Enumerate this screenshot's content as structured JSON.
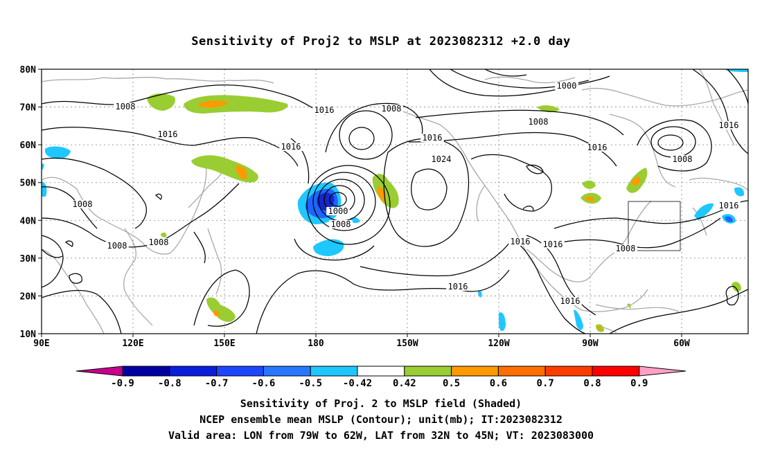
{
  "title": "Sensitivity of Proj2 to MSLP at 2023082312 +2.0 day",
  "map": {
    "lat_labels": [
      "80N",
      "70N",
      "60N",
      "50N",
      "40N",
      "30N",
      "20N",
      "10N"
    ],
    "lon_labels": [
      "90E",
      "120E",
      "150E",
      "180",
      "150W",
      "120W",
      "90W",
      "60W"
    ],
    "contour_labels": [
      {
        "text": "1008"
      },
      {
        "text": "1016"
      },
      {
        "text": "1008"
      },
      {
        "text": "1016"
      },
      {
        "text": "1016"
      },
      {
        "text": "1008"
      },
      {
        "text": "1008"
      },
      {
        "text": "1008"
      },
      {
        "text": "1000"
      },
      {
        "text": "1008"
      },
      {
        "text": "1016"
      },
      {
        "text": "1024"
      },
      {
        "text": "1000"
      },
      {
        "text": "1008"
      },
      {
        "text": "1016"
      },
      {
        "text": "1008"
      },
      {
        "text": "1016"
      },
      {
        "text": "1016"
      },
      {
        "text": "1016"
      },
      {
        "text": "1016"
      },
      {
        "text": "1008"
      },
      {
        "text": "1016"
      },
      {
        "text": "1016"
      }
    ],
    "colors": {
      "contour": "#000000",
      "coastline": "#a0a0a0",
      "grid": "#808080",
      "shade_green": "#9acd32",
      "shade_orange": "#ff9900",
      "shade_lightblue": "#1ec8ff",
      "shade_blue": "#1e64ff",
      "shade_darkblue": "#1428c8"
    }
  },
  "colorbar": {
    "tick_labels": [
      "-0.9",
      "-0.8",
      "-0.7",
      "-0.6",
      "-0.5",
      "-0.42",
      "0.42",
      "0.5",
      "0.6",
      "0.7",
      "0.8",
      "0.9"
    ],
    "colors": [
      "#c8008c",
      "#0000a0",
      "#0a1edc",
      "#1e46ff",
      "#2878ff",
      "#1ec8ff",
      "#ffffff",
      "#9acd32",
      "#ff9900",
      "#ff6e00",
      "#ff3c00",
      "#ff0000",
      "#ffa0c8"
    ]
  },
  "footer": {
    "line1": "Sensitivity of Proj. 2 to MSLP field (Shaded)",
    "line2": "NCEP ensemble mean MSLP (Contour); unit(mb); IT:2023082312",
    "line3": "Valid area: LON from 79W to 62W, LAT from 32N to 45N; VT: 2023083000"
  }
}
